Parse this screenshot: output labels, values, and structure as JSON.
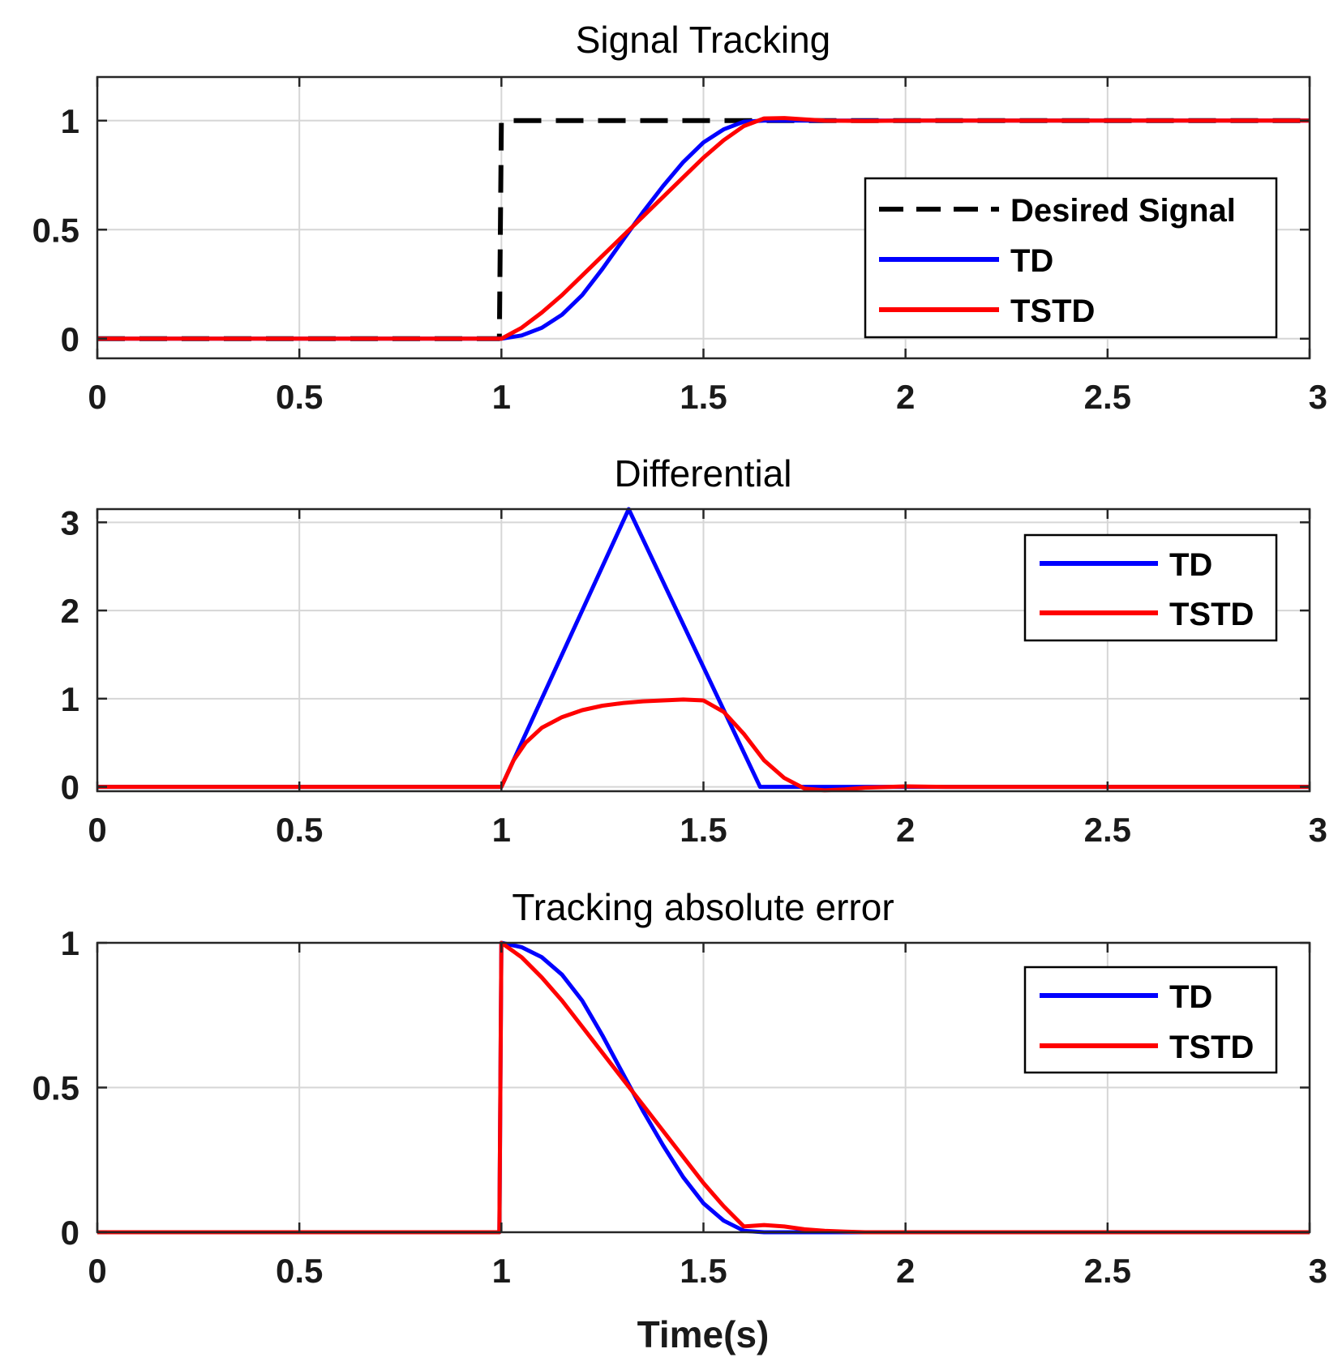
{
  "figure": {
    "xlabel": "Time(s)"
  },
  "chart_data": [
    {
      "type": "line",
      "title": "Signal Tracking",
      "xlabel": "",
      "ylabel": "",
      "xlim": [
        0,
        3
      ],
      "ylim": [
        -0.09,
        1.2
      ],
      "xticks": [
        "0",
        "0.5",
        "1",
        "1.5",
        "2",
        "2.5",
        "3"
      ],
      "xtick_values": [
        0,
        0.5,
        1,
        1.5,
        2,
        2.5,
        3
      ],
      "yticks": [
        "0",
        "0.5",
        "1"
      ],
      "ytick_values": [
        0,
        0.5,
        1
      ],
      "grid": true,
      "legend_position": "middle-right",
      "series": [
        {
          "name": "Desired Signal",
          "color": "#000000",
          "style": "dashed",
          "x": [
            0,
            0.995,
            1.0,
            3.0
          ],
          "y": [
            0,
            0,
            1,
            1
          ]
        },
        {
          "name": "TD",
          "color": "#0000ff",
          "style": "solid",
          "x": [
            0,
            1.0,
            1.05,
            1.1,
            1.15,
            1.2,
            1.25,
            1.3,
            1.35,
            1.4,
            1.45,
            1.5,
            1.55,
            1.6,
            1.65,
            1.7,
            3.0
          ],
          "y": [
            0,
            0,
            0.015,
            0.05,
            0.11,
            0.2,
            0.32,
            0.45,
            0.58,
            0.7,
            0.81,
            0.9,
            0.96,
            0.995,
            1.0,
            1.0,
            1.0
          ]
        },
        {
          "name": "TSTD",
          "color": "#ff0000",
          "style": "solid",
          "x": [
            0,
            1.0,
            1.05,
            1.1,
            1.15,
            1.2,
            1.25,
            1.3,
            1.35,
            1.4,
            1.45,
            1.5,
            1.55,
            1.6,
            1.65,
            1.7,
            1.75,
            1.8,
            1.9,
            2.0,
            3.0
          ],
          "y": [
            0,
            0,
            0.05,
            0.12,
            0.2,
            0.29,
            0.38,
            0.47,
            0.56,
            0.65,
            0.74,
            0.83,
            0.91,
            0.975,
            1.01,
            1.012,
            1.006,
            1.0,
            0.998,
            1.0,
            1.0
          ]
        }
      ]
    },
    {
      "type": "line",
      "title": "Differential",
      "xlabel": "",
      "ylabel": "",
      "xlim": [
        0,
        3
      ],
      "ylim": [
        -0.05,
        3.15
      ],
      "xticks": [
        "0",
        "0.5",
        "1",
        "1.5",
        "2",
        "2.5",
        "3"
      ],
      "xtick_values": [
        0,
        0.5,
        1,
        1.5,
        2,
        2.5,
        3
      ],
      "yticks": [
        "0",
        "1",
        "2",
        "3"
      ],
      "ytick_values": [
        0,
        1,
        2,
        3
      ],
      "grid": true,
      "legend_position": "top-right",
      "series": [
        {
          "name": "TD",
          "color": "#0000ff",
          "style": "solid",
          "x": [
            0,
            1.0,
            1.315,
            1.64,
            3.0
          ],
          "y": [
            0,
            0,
            3.15,
            0,
            0
          ]
        },
        {
          "name": "TSTD",
          "color": "#ff0000",
          "style": "solid",
          "x": [
            0,
            1.0,
            1.03,
            1.06,
            1.1,
            1.15,
            1.2,
            1.25,
            1.3,
            1.35,
            1.4,
            1.45,
            1.5,
            1.55,
            1.6,
            1.65,
            1.7,
            1.75,
            1.8,
            1.85,
            1.9,
            2.0,
            2.1,
            3.0
          ],
          "y": [
            0,
            0,
            0.3,
            0.5,
            0.67,
            0.79,
            0.87,
            0.92,
            0.95,
            0.97,
            0.98,
            0.99,
            0.98,
            0.85,
            0.6,
            0.3,
            0.1,
            -0.02,
            -0.04,
            -0.03,
            -0.01,
            0.005,
            0,
            0
          ]
        }
      ]
    },
    {
      "type": "line",
      "title": "Tracking absolute error",
      "xlabel": "Time(s)",
      "ylabel": "",
      "xlim": [
        0,
        3
      ],
      "ylim": [
        0,
        1
      ],
      "xticks": [
        "0",
        "0.5",
        "1",
        "1.5",
        "2",
        "2.5",
        "3"
      ],
      "xtick_values": [
        0,
        0.5,
        1,
        1.5,
        2,
        2.5,
        3
      ],
      "yticks": [
        "0",
        "0.5",
        "1"
      ],
      "ytick_values": [
        0,
        0.5,
        1
      ],
      "grid": true,
      "legend_position": "top-right",
      "series": [
        {
          "name": "TD",
          "color": "#0000ff",
          "style": "solid",
          "x": [
            0,
            0.995,
            1.0,
            1.05,
            1.1,
            1.15,
            1.2,
            1.25,
            1.3,
            1.35,
            1.4,
            1.45,
            1.5,
            1.55,
            1.6,
            1.65,
            1.7,
            3.0
          ],
          "y": [
            0,
            0,
            1,
            0.985,
            0.95,
            0.89,
            0.8,
            0.68,
            0.55,
            0.42,
            0.3,
            0.19,
            0.1,
            0.04,
            0.005,
            0,
            0,
            0
          ]
        },
        {
          "name": "TSTD",
          "color": "#ff0000",
          "style": "solid",
          "x": [
            0,
            0.995,
            1.0,
            1.05,
            1.1,
            1.15,
            1.2,
            1.25,
            1.3,
            1.35,
            1.4,
            1.45,
            1.5,
            1.55,
            1.6,
            1.65,
            1.7,
            1.75,
            1.8,
            1.85,
            1.9,
            3.0
          ],
          "y": [
            0,
            0,
            1,
            0.95,
            0.88,
            0.8,
            0.71,
            0.62,
            0.53,
            0.44,
            0.35,
            0.26,
            0.17,
            0.09,
            0.02,
            0.025,
            0.02,
            0.01,
            0.005,
            0.002,
            0,
            0
          ]
        }
      ]
    }
  ]
}
